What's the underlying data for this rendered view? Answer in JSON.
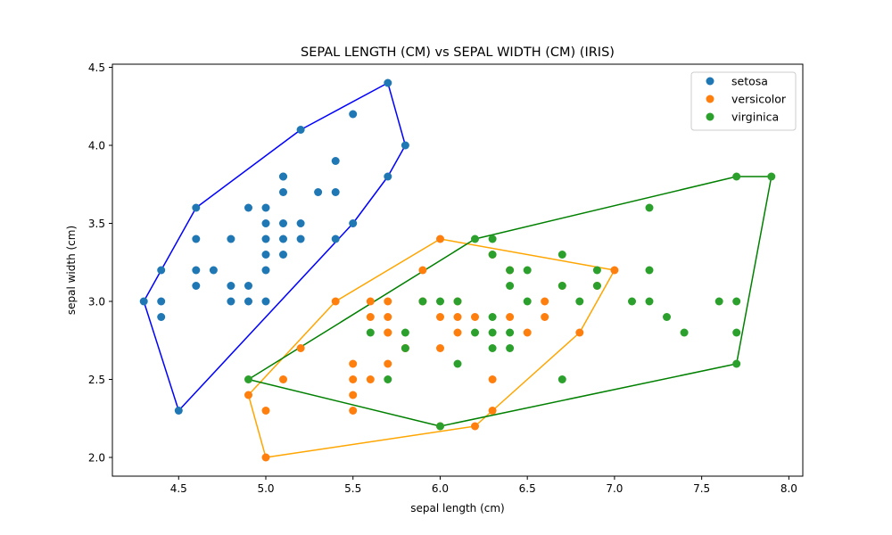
{
  "chart_data": {
    "type": "scatter",
    "title": "SEPAL LENGTH (CM) vs SEPAL WIDTH (CM) (IRIS)",
    "xlabel": "sepal length (cm)",
    "ylabel": "sepal width (cm)",
    "xlim": [
      4.12,
      8.08
    ],
    "ylim": [
      1.88,
      4.52
    ],
    "xticks": [
      4.5,
      5.0,
      5.5,
      6.0,
      6.5,
      7.0,
      7.5,
      8.0
    ],
    "xtick_labels": [
      "4.5",
      "5.0",
      "5.5",
      "6.0",
      "6.5",
      "7.0",
      "7.5",
      "8.0"
    ],
    "yticks": [
      2.0,
      2.5,
      3.0,
      3.5,
      4.0,
      4.5
    ],
    "ytick_labels": [
      "2.0",
      "2.5",
      "3.0",
      "3.5",
      "4.0",
      "4.5"
    ],
    "grid": false,
    "legend_position": "top-right",
    "series": [
      {
        "name": "setosa",
        "color": "#1f77b4",
        "hull_color": "#0000ff",
        "points": [
          [
            5.1,
            3.5
          ],
          [
            4.9,
            3.0
          ],
          [
            4.7,
            3.2
          ],
          [
            4.6,
            3.1
          ],
          [
            5.0,
            3.6
          ],
          [
            5.4,
            3.9
          ],
          [
            4.6,
            3.4
          ],
          [
            5.0,
            3.4
          ],
          [
            4.4,
            2.9
          ],
          [
            4.9,
            3.1
          ],
          [
            5.4,
            3.7
          ],
          [
            4.8,
            3.4
          ],
          [
            4.8,
            3.0
          ],
          [
            4.3,
            3.0
          ],
          [
            5.8,
            4.0
          ],
          [
            5.7,
            4.4
          ],
          [
            5.1,
            3.8
          ],
          [
            5.7,
            3.8
          ],
          [
            5.4,
            3.4
          ],
          [
            5.1,
            3.7
          ],
          [
            4.6,
            3.6
          ],
          [
            5.1,
            3.3
          ],
          [
            5.0,
            3.0
          ],
          [
            5.2,
            3.5
          ],
          [
            5.2,
            3.4
          ],
          [
            4.8,
            3.1
          ],
          [
            5.5,
            4.2
          ],
          [
            5.5,
            3.5
          ],
          [
            4.4,
            3.0
          ],
          [
            5.0,
            3.5
          ],
          [
            4.5,
            2.3
          ],
          [
            4.4,
            3.2
          ],
          [
            5.1,
            3.8
          ],
          [
            5.3,
            3.7
          ],
          [
            5.0,
            3.3
          ],
          [
            5.0,
            3.2
          ],
          [
            4.6,
            3.2
          ],
          [
            5.1,
            3.4
          ],
          [
            5.2,
            4.1
          ],
          [
            4.9,
            3.6
          ]
        ],
        "hull": [
          [
            4.3,
            3.0
          ],
          [
            4.5,
            2.3
          ],
          [
            5.5,
            3.5
          ],
          [
            5.7,
            3.8
          ],
          [
            5.8,
            4.0
          ],
          [
            5.7,
            4.4
          ],
          [
            5.2,
            4.1
          ],
          [
            4.6,
            3.6
          ],
          [
            4.4,
            3.2
          ]
        ]
      },
      {
        "name": "versicolor",
        "color": "#ff7f0e",
        "hull_color": "#ffa500",
        "points": [
          [
            7.0,
            3.2
          ],
          [
            6.4,
            3.2
          ],
          [
            6.9,
            3.1
          ],
          [
            5.5,
            2.3
          ],
          [
            6.5,
            2.8
          ],
          [
            5.7,
            2.8
          ],
          [
            6.3,
            3.3
          ],
          [
            4.9,
            2.4
          ],
          [
            6.6,
            2.9
          ],
          [
            5.2,
            2.7
          ],
          [
            5.0,
            2.0
          ],
          [
            5.9,
            3.0
          ],
          [
            6.0,
            2.2
          ],
          [
            6.1,
            2.9
          ],
          [
            5.6,
            2.9
          ],
          [
            6.7,
            3.1
          ],
          [
            5.6,
            3.0
          ],
          [
            5.8,
            2.7
          ],
          [
            6.2,
            2.2
          ],
          [
            5.6,
            2.5
          ],
          [
            5.9,
            3.2
          ],
          [
            6.1,
            2.8
          ],
          [
            6.3,
            2.5
          ],
          [
            6.4,
            2.9
          ],
          [
            6.6,
            3.0
          ],
          [
            6.8,
            2.8
          ],
          [
            6.0,
            2.9
          ],
          [
            5.7,
            2.6
          ],
          [
            5.5,
            2.4
          ],
          [
            5.8,
            2.7
          ],
          [
            6.0,
            2.7
          ],
          [
            5.4,
            3.0
          ],
          [
            6.0,
            3.4
          ],
          [
            6.3,
            2.3
          ],
          [
            5.5,
            2.5
          ],
          [
            5.5,
            2.6
          ],
          [
            5.0,
            2.3
          ],
          [
            5.7,
            3.0
          ],
          [
            5.7,
            2.9
          ],
          [
            5.1,
            2.5
          ],
          [
            5.7,
            2.8
          ],
          [
            6.2,
            2.9
          ],
          [
            6.1,
            3.0
          ]
        ],
        "hull": [
          [
            5.0,
            2.0
          ],
          [
            6.2,
            2.2
          ],
          [
            6.3,
            2.3
          ],
          [
            6.8,
            2.8
          ],
          [
            7.0,
            3.2
          ],
          [
            6.0,
            3.4
          ],
          [
            5.4,
            3.0
          ],
          [
            4.9,
            2.4
          ]
        ]
      },
      {
        "name": "virginica",
        "color": "#2ca02c",
        "hull_color": "#008000",
        "points": [
          [
            6.3,
            3.3
          ],
          [
            5.8,
            2.7
          ],
          [
            7.1,
            3.0
          ],
          [
            6.3,
            2.9
          ],
          [
            6.5,
            3.0
          ],
          [
            7.6,
            3.0
          ],
          [
            4.9,
            2.5
          ],
          [
            7.3,
            2.9
          ],
          [
            6.7,
            2.5
          ],
          [
            7.2,
            3.6
          ],
          [
            6.5,
            3.2
          ],
          [
            6.4,
            2.7
          ],
          [
            6.8,
            3.0
          ],
          [
            5.7,
            2.5
          ],
          [
            5.8,
            2.8
          ],
          [
            6.4,
            3.2
          ],
          [
            7.7,
            3.8
          ],
          [
            7.7,
            2.6
          ],
          [
            6.0,
            2.2
          ],
          [
            6.9,
            3.2
          ],
          [
            5.6,
            2.8
          ],
          [
            7.7,
            2.8
          ],
          [
            6.3,
            2.7
          ],
          [
            6.7,
            3.3
          ],
          [
            7.2,
            3.2
          ],
          [
            6.2,
            2.8
          ],
          [
            6.1,
            3.0
          ],
          [
            6.4,
            2.8
          ],
          [
            7.2,
            3.0
          ],
          [
            7.4,
            2.8
          ],
          [
            7.9,
            3.8
          ],
          [
            6.3,
            2.8
          ],
          [
            6.1,
            2.6
          ],
          [
            7.7,
            3.0
          ],
          [
            6.3,
            3.4
          ],
          [
            6.4,
            3.1
          ],
          [
            6.0,
            3.0
          ],
          [
            6.9,
            3.1
          ],
          [
            6.7,
            3.1
          ],
          [
            6.2,
            3.4
          ],
          [
            5.9,
            3.0
          ]
        ],
        "hull": [
          [
            4.9,
            2.5
          ],
          [
            6.0,
            2.2
          ],
          [
            7.7,
            2.6
          ],
          [
            7.9,
            3.8
          ],
          [
            7.7,
            3.8
          ],
          [
            6.2,
            3.4
          ]
        ]
      }
    ]
  }
}
